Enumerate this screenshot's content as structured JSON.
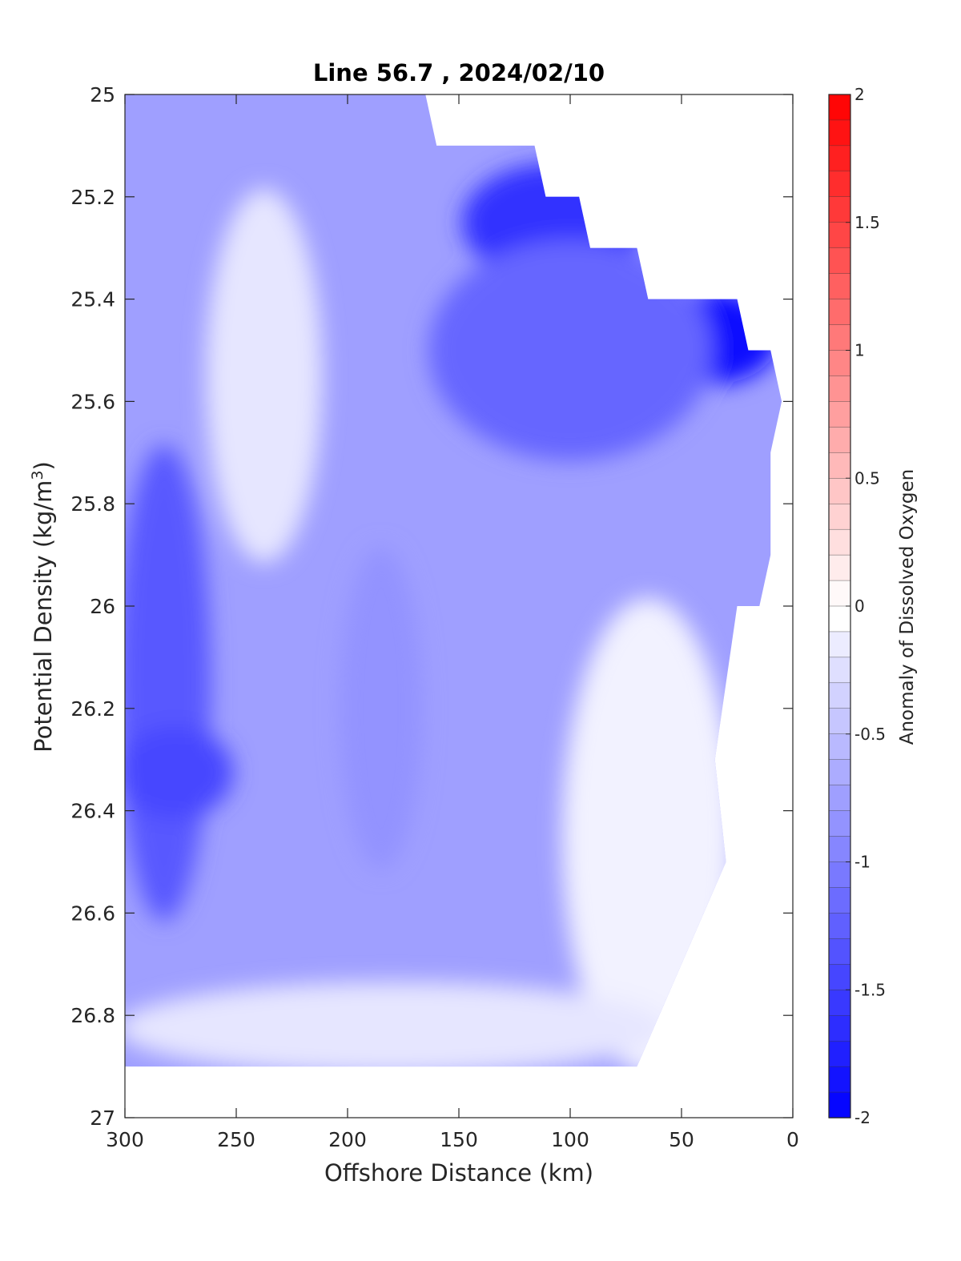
{
  "chart_data": {
    "type": "heatmap",
    "title": "Line 56.7 , 2024/02/10",
    "xlabel": "Offshore Distance (km)",
    "ylabel_main": "Potential Density (kg/m",
    "ylabel_sup": "3",
    "ylabel_close": ")",
    "colorbar_label": "Anomaly of Dissolved Oxygen",
    "xlim": [
      300,
      0
    ],
    "ylim": [
      25,
      27
    ],
    "x_reversed": true,
    "y_reversed": true,
    "x_ticks": [
      300,
      250,
      200,
      150,
      100,
      50,
      0
    ],
    "x_tick_labels": [
      "300",
      "250",
      "200",
      "150",
      "100",
      "50",
      "0"
    ],
    "y_ticks": [
      25,
      25.2,
      25.4,
      25.6,
      25.8,
      26,
      26.2,
      26.4,
      26.6,
      26.8,
      27
    ],
    "y_tick_labels": [
      "25",
      "25.2",
      "25.4",
      "25.6",
      "25.8",
      "26",
      "26.2",
      "26.4",
      "26.6",
      "26.8",
      "27"
    ],
    "colorbar_range": [
      -2,
      2
    ],
    "colorbar_ticks": [
      -2,
      -1.5,
      -1,
      -0.5,
      0,
      0.5,
      1,
      1.5,
      2
    ],
    "colorbar_tick_labels": [
      "-2",
      "-1.5",
      "-1",
      "-0.5",
      "0",
      "0.5",
      "1",
      "1.5",
      "2"
    ],
    "colorbar_levels": 40,
    "colors": {
      "negative": "#0000ff",
      "zero": "#ffffff",
      "positive": "#ff0000"
    },
    "data_boundary": [
      [
        300,
        25.0
      ],
      [
        165,
        25.0
      ],
      [
        160,
        25.1
      ],
      [
        116,
        25.1
      ],
      [
        111,
        25.2
      ],
      [
        96,
        25.2
      ],
      [
        91,
        25.3
      ],
      [
        70,
        25.3
      ],
      [
        65,
        25.4
      ],
      [
        25,
        25.4
      ],
      [
        20,
        25.5
      ],
      [
        10,
        25.5
      ],
      [
        5,
        25.6
      ],
      [
        10,
        25.7
      ],
      [
        10,
        25.9
      ],
      [
        15,
        26.0
      ],
      [
        25,
        26.0
      ],
      [
        35,
        26.3
      ],
      [
        30,
        26.5
      ],
      [
        50,
        26.7
      ],
      [
        60,
        26.8
      ],
      [
        70,
        26.9
      ],
      [
        300,
        26.9
      ]
    ],
    "anomaly_features": [
      {
        "name": "background",
        "x": [
          160,
          300
        ],
        "y": [
          25.0,
          26.9
        ],
        "value": -0.75
      },
      {
        "name": "core-nearshore-surface",
        "x": [
          10,
          60
        ],
        "y": [
          25.4,
          25.55
        ],
        "value": -1.9
      },
      {
        "name": "core-offshore-surface",
        "x": [
          70,
          145
        ],
        "y": [
          25.15,
          25.35
        ],
        "value": -1.6
      },
      {
        "name": "upper-transition",
        "x": [
          40,
          160
        ],
        "y": [
          25.3,
          25.7
        ],
        "value": -1.2
      },
      {
        "name": "offshore-low-deep",
        "x": [
          265,
          300
        ],
        "y": [
          25.7,
          26.6
        ],
        "value": -1.3
      },
      {
        "name": "offshore-low-core",
        "x": [
          255,
          300
        ],
        "y": [
          26.25,
          26.4
        ],
        "value": -1.45
      },
      {
        "name": "high-tongue",
        "x": [
          215,
          260
        ],
        "y": [
          25.2,
          25.9
        ],
        "value": -0.2
      },
      {
        "name": "middle-band",
        "x": [
          170,
          200
        ],
        "y": [
          25.9,
          26.5
        ],
        "value": -0.85
      },
      {
        "name": "nearshore-deep",
        "x": [
          30,
          100
        ],
        "y": [
          26.0,
          26.9
        ],
        "value": -0.1
      },
      {
        "name": "bottom-layer",
        "x": [
          60,
          300
        ],
        "y": [
          26.75,
          26.9
        ],
        "value": -0.2
      }
    ]
  }
}
